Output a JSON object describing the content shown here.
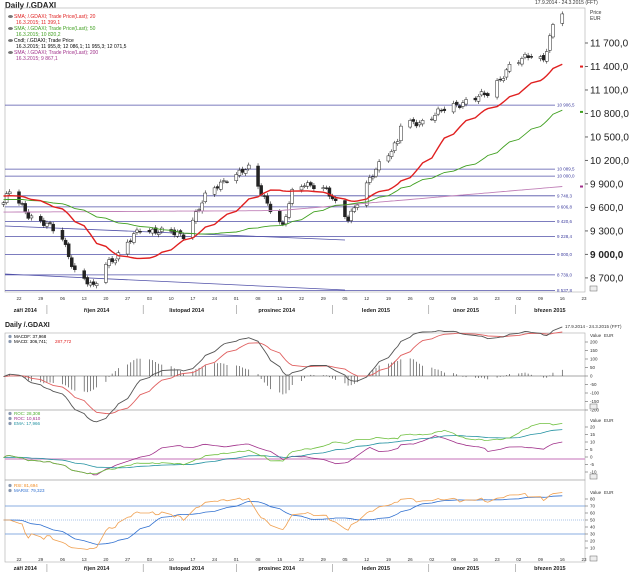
{
  "header": {
    "title": "Daily /.GDAXI",
    "range": "17.9.2014 - 24.3.2015 (FFT)",
    "axis_title": "Price",
    "axis_unit": "EUR"
  },
  "legend": [
    {
      "label": "SMA; /.GDAXI; Trade Price(Last);  20",
      "value": "16.3.2015; 11 399,1",
      "color": "#e02020"
    },
    {
      "label": "SMA; /.GDAXI; Trade Price(Last);  50",
      "value": "16.3.2015; 10 820,2",
      "color": "#40a020"
    },
    {
      "label": "Cndl; /.GDAXI; Trade Price",
      "value": "16.3.2015; 11 955,8; 12 086,1; 11 955,3; 12 071,5",
      "color": "#000000"
    },
    {
      "label": "SMA; /.GDAXI; Trade Price(Last);  200",
      "value": "16.3.2015; 9 867,1",
      "color": "#a0308a"
    }
  ],
  "price_axis": [
    "11 700,0",
    "11 400,0",
    "11 100,0",
    "10 800,0",
    "10 500,0",
    "10 200,0",
    "9 900,0",
    "9 600,0",
    "9 300,0",
    "9 000,0",
    "8 700,0"
  ],
  "price_axis_values": [
    11700,
    11400,
    11100,
    10800,
    10500,
    10200,
    9900,
    9600,
    9300,
    9000,
    8700
  ],
  "levels": [
    {
      "value": 10906.5,
      "label": "10 906,5"
    },
    {
      "value": 10089.5,
      "label": "10 089,5"
    },
    {
      "value": 10000.0,
      "label": "10 000,0"
    },
    {
      "value": 9748.3,
      "label": "9 748,3"
    },
    {
      "value": 9606.8,
      "label": "9 606,8"
    },
    {
      "value": 9420.6,
      "label": "9 420,6"
    },
    {
      "value": 9228.4,
      "label": "9 228,4"
    },
    {
      "value": 9000.0,
      "label": "9 000,0"
    },
    {
      "value": 8739.0,
      "label": "8 739,0"
    },
    {
      "value": 8537.8,
      "label": "8 537,8"
    }
  ],
  "x_ticks": [
    {
      "date": "2014-09-22",
      "label": "22"
    },
    {
      "date": "2014-09-29",
      "label": "29"
    },
    {
      "date": "2014-10-06",
      "label": "06"
    },
    {
      "date": "2014-10-13",
      "label": "13"
    },
    {
      "date": "2014-10-20",
      "label": "20"
    },
    {
      "date": "2014-10-27",
      "label": "27"
    },
    {
      "date": "2014-11-03",
      "label": "03"
    },
    {
      "date": "2014-11-10",
      "label": "10"
    },
    {
      "date": "2014-11-17",
      "label": "17"
    },
    {
      "date": "2014-11-24",
      "label": "24"
    },
    {
      "date": "2014-12-01",
      "label": "01"
    },
    {
      "date": "2014-12-08",
      "label": "08"
    },
    {
      "date": "2014-12-15",
      "label": "15"
    },
    {
      "date": "2014-12-22",
      "label": "22"
    },
    {
      "date": "2014-12-29",
      "label": "29"
    },
    {
      "date": "2015-01-05",
      "label": "05"
    },
    {
      "date": "2015-01-12",
      "label": "12"
    },
    {
      "date": "2015-01-19",
      "label": "19"
    },
    {
      "date": "2015-01-26",
      "label": "26"
    },
    {
      "date": "2015-02-02",
      "label": "02"
    },
    {
      "date": "2015-02-09",
      "label": "09"
    },
    {
      "date": "2015-02-16",
      "label": "16"
    },
    {
      "date": "2015-02-23",
      "label": "23"
    },
    {
      "date": "2015-03-02",
      "label": "02"
    },
    {
      "date": "2015-03-09",
      "label": "09"
    },
    {
      "date": "2015-03-16",
      "label": "16"
    },
    {
      "date": "2015-03-23",
      "label": "23"
    }
  ],
  "months": [
    {
      "date": "2014-09-24",
      "label": "září 2014"
    },
    {
      "date": "2014-10-17",
      "label": "říjen 2014"
    },
    {
      "date": "2014-11-15",
      "label": "listopad 2014"
    },
    {
      "date": "2014-12-14",
      "label": "prosinec 2014"
    },
    {
      "date": "2015-01-15",
      "label": "leden 2015"
    },
    {
      "date": "2015-02-13",
      "label": "únor 2015"
    },
    {
      "date": "2015-03-12",
      "label": "březen 2015"
    }
  ],
  "macd_panel": {
    "title": "Daily /.GDAXI",
    "range": "17.9.2014 - 24.3.2015 (FFT)",
    "legend": [
      {
        "label": "MACDF: 37,968",
        "color": "#000000"
      },
      {
        "label": "MACD: 306,741;",
        "color": "#000000"
      },
      {
        "label": "287,772",
        "color": "#e02020"
      }
    ],
    "axis_title": "Value",
    "axis_unit": "EUR",
    "axis": [
      "200",
      "150",
      "100",
      "50",
      "0",
      "-50",
      "-100",
      "-150",
      "-200"
    ],
    "axis_values": [
      200,
      150,
      100,
      50,
      0,
      -50,
      -100,
      -150,
      -200
    ]
  },
  "roc_panel": {
    "legend": [
      {
        "label": "ROC: 28,308",
        "color": "#50b030"
      },
      {
        "label": "ROC: 10,610",
        "color": "#a0308a"
      },
      {
        "label": "EMA: 17,966",
        "color": "#2090a0"
      }
    ],
    "axis_title": "Value",
    "axis_unit": "EUR",
    "axis": [
      "20",
      "15",
      "10",
      "5",
      "0",
      "-5",
      "-10"
    ],
    "axis_values": [
      20,
      15,
      10,
      5,
      0,
      -5,
      -10
    ]
  },
  "rsi_panel": {
    "legend": [
      {
        "label": "RSI: 81,694",
        "color": "#f08a20"
      },
      {
        "label": "MARSI: 79,323",
        "color": "#3070d0"
      }
    ],
    "axis_title": "Value",
    "axis_unit": "EUR",
    "axis": [
      "80",
      "70",
      "60",
      "50",
      "40",
      "30",
      "20",
      "10"
    ],
    "axis_values": [
      80,
      70,
      60,
      50,
      40,
      30,
      20,
      10
    ]
  },
  "chart_data": {
    "type": "line",
    "title": "Daily /.GDAXI",
    "ylabel": "Price EUR",
    "ylim": [
      8500,
      12100
    ],
    "series": [
      {
        "name": "Cndl close (anchor points)",
        "points": [
          [
            "2014-09-17",
            9660
          ],
          [
            "2014-09-19",
            9800
          ],
          [
            "2014-09-25",
            9510
          ],
          [
            "2014-10-01",
            9380
          ],
          [
            "2014-10-06",
            9200
          ],
          [
            "2014-10-10",
            8790
          ],
          [
            "2014-10-16",
            8570
          ],
          [
            "2014-10-20",
            8890
          ],
          [
            "2014-10-24",
            8990
          ],
          [
            "2014-10-31",
            9330
          ],
          [
            "2014-11-07",
            9290
          ],
          [
            "2014-11-14",
            9250
          ],
          [
            "2014-11-21",
            9730
          ],
          [
            "2014-11-28",
            9980
          ],
          [
            "2014-12-05",
            10090
          ],
          [
            "2014-12-09",
            9800
          ],
          [
            "2014-12-12",
            9590
          ],
          [
            "2014-12-16",
            9340
          ],
          [
            "2014-12-19",
            9790
          ],
          [
            "2014-12-23",
            9920
          ],
          [
            "2014-12-30",
            9805
          ],
          [
            "2015-01-06",
            9470
          ],
          [
            "2015-01-09",
            9650
          ],
          [
            "2015-01-16",
            10170
          ],
          [
            "2015-01-22",
            10430
          ],
          [
            "2015-01-23",
            10650
          ],
          [
            "2015-01-30",
            10700
          ],
          [
            "2015-02-06",
            10850
          ],
          [
            "2015-02-13",
            10960
          ],
          [
            "2015-02-20",
            11050
          ],
          [
            "2015-02-27",
            11400
          ],
          [
            "2015-03-06",
            11550
          ],
          [
            "2015-03-10",
            11500
          ],
          [
            "2015-03-13",
            11900
          ],
          [
            "2015-03-16",
            12071.5
          ]
        ]
      },
      {
        "name": "SMA 200",
        "points": [
          [
            "2014-09-17",
            9540
          ],
          [
            "2014-12-15",
            9560
          ],
          [
            "2015-03-16",
            9867.1
          ]
        ]
      }
    ]
  }
}
